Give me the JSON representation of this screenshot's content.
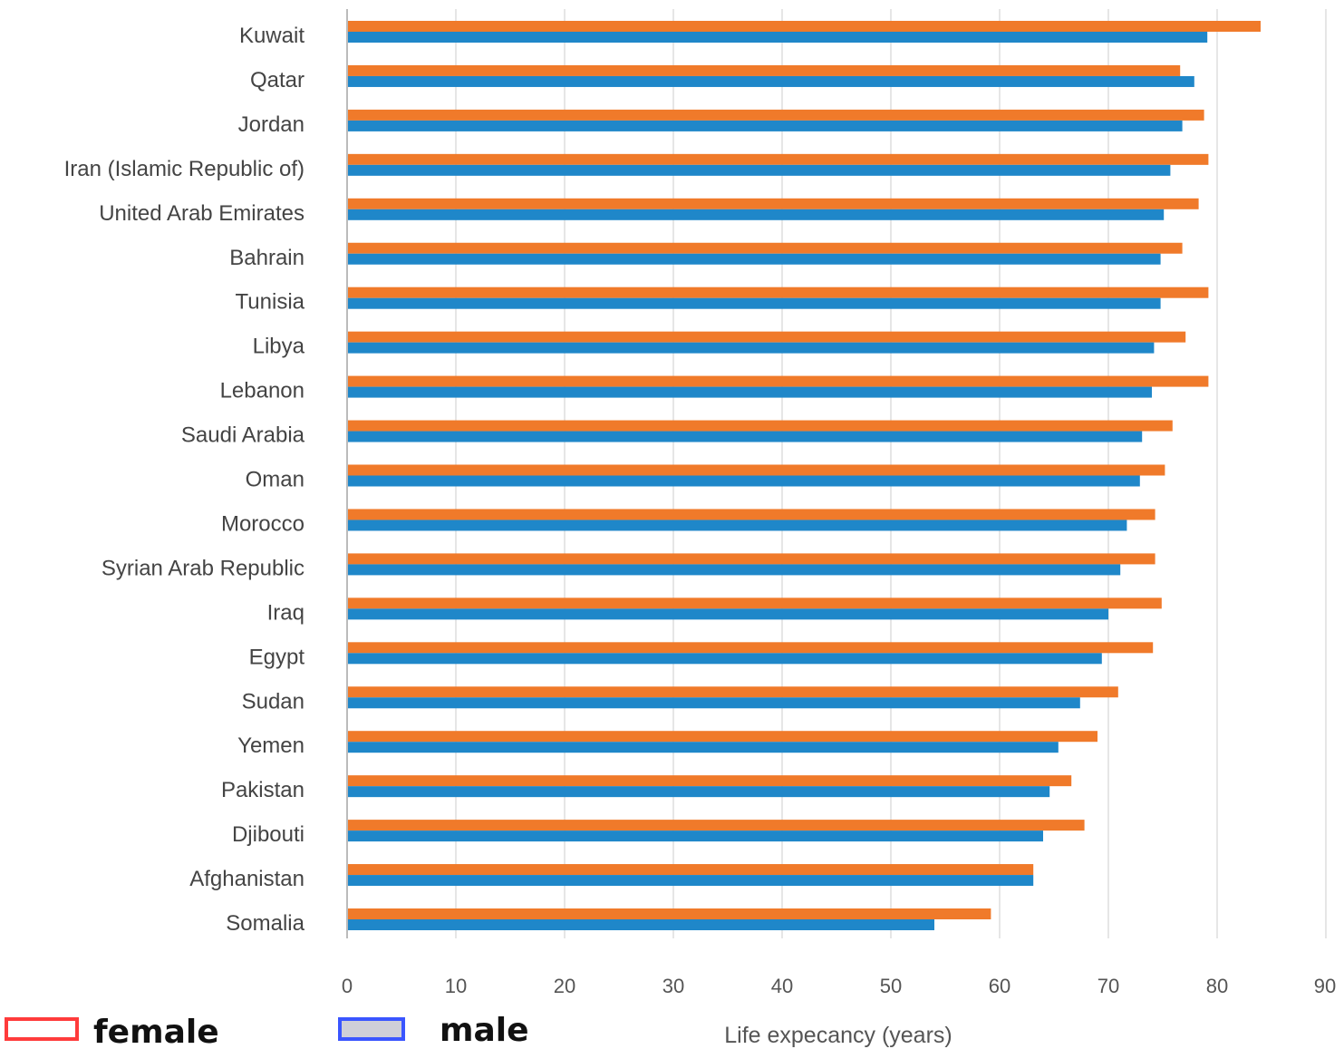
{
  "chart_data": {
    "type": "bar",
    "orientation": "horizontal",
    "categories": [
      "Kuwait",
      "Qatar",
      "Jordan",
      "Iran (Islamic Republic of)",
      "United Arab Emirates",
      "Bahrain",
      "Tunisia",
      "Libya",
      "Lebanon",
      "Saudi Arabia",
      "Oman",
      "Morocco",
      "Syrian Arab Republic",
      "Iraq",
      "Egypt",
      "Sudan",
      "Yemen",
      "Pakistan",
      "Djibouti",
      "Afghanistan",
      "Somalia"
    ],
    "series": [
      {
        "name": "female",
        "color": "#f07a2a",
        "values": [
          84,
          76.6,
          78.8,
          79.2,
          78.3,
          76.8,
          79.2,
          77.1,
          79.2,
          75.9,
          75.2,
          74.3,
          74.3,
          74.9,
          74.1,
          70.9,
          69,
          66.6,
          67.8,
          63.1,
          59.2
        ]
      },
      {
        "name": "male",
        "color": "#1f87c9",
        "values": [
          79.1,
          77.9,
          76.8,
          75.7,
          75.1,
          74.8,
          74.8,
          74.2,
          74,
          73.1,
          72.9,
          71.7,
          71.1,
          70,
          69.4,
          67.4,
          65.4,
          64.6,
          64,
          63.1,
          54
        ]
      }
    ],
    "xlim": [
      0,
      90
    ],
    "xticks": [
      0,
      10,
      20,
      30,
      40,
      50,
      60,
      70,
      80,
      90
    ],
    "xlabel": "Life expecancy (years)",
    "ylabel": "",
    "title": "",
    "grid": "vertical",
    "legend": {
      "position": "bottom-left",
      "items": [
        {
          "label": "female",
          "color": "#ff3b3b"
        },
        {
          "label": "male",
          "color": "#3a55ff"
        }
      ]
    }
  }
}
